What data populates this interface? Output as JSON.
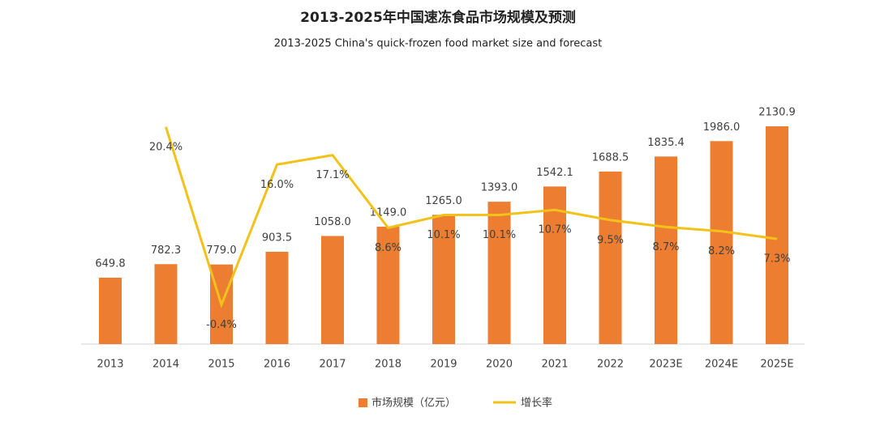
{
  "chart_data": {
    "type": "bar-line",
    "title": "2013-2025年中国速冻食品市场规模及预测",
    "subtitle": "2013-2025 China's quick-frozen food market size and forecast",
    "categories": [
      "2013",
      "2014",
      "2015",
      "2016",
      "2017",
      "2018",
      "2019",
      "2020",
      "2021",
      "2022",
      "2023E",
      "2024E",
      "2025E"
    ],
    "series": [
      {
        "name": "市场规模（亿元）",
        "type": "bar",
        "color": "#ed7d31",
        "values": [
          649.8,
          782.3,
          779.0,
          903.5,
          1058.0,
          1149.0,
          1265.0,
          1393.0,
          1542.1,
          1688.5,
          1835.4,
          1986.0,
          2130.9
        ],
        "value_labels": [
          "649.8",
          "782.3",
          "779.0",
          "903.5",
          "1058.0",
          "1149.0",
          "1265.0",
          "1393.0",
          "1542.1",
          "1688.5",
          "1835.4",
          "1986.0",
          "2130.9"
        ]
      },
      {
        "name": "增长率",
        "type": "line",
        "axis": "y2",
        "color": "#f2c21b",
        "values": [
          null,
          20.4,
          -0.4,
          16.0,
          17.1,
          8.6,
          10.1,
          10.1,
          10.7,
          9.5,
          8.7,
          8.2,
          7.3
        ],
        "value_labels": [
          null,
          "20.4%",
          "-0.4%",
          "16.0%",
          "17.1%",
          "8.6%",
          "10.1%",
          "10.1%",
          "10.7%",
          "9.5%",
          "8.7%",
          "8.2%",
          "7.3%"
        ]
      }
    ],
    "ylim": [
      0,
      2200
    ],
    "y2lim": [
      -5,
      21.3
    ],
    "legend": "bottom"
  }
}
